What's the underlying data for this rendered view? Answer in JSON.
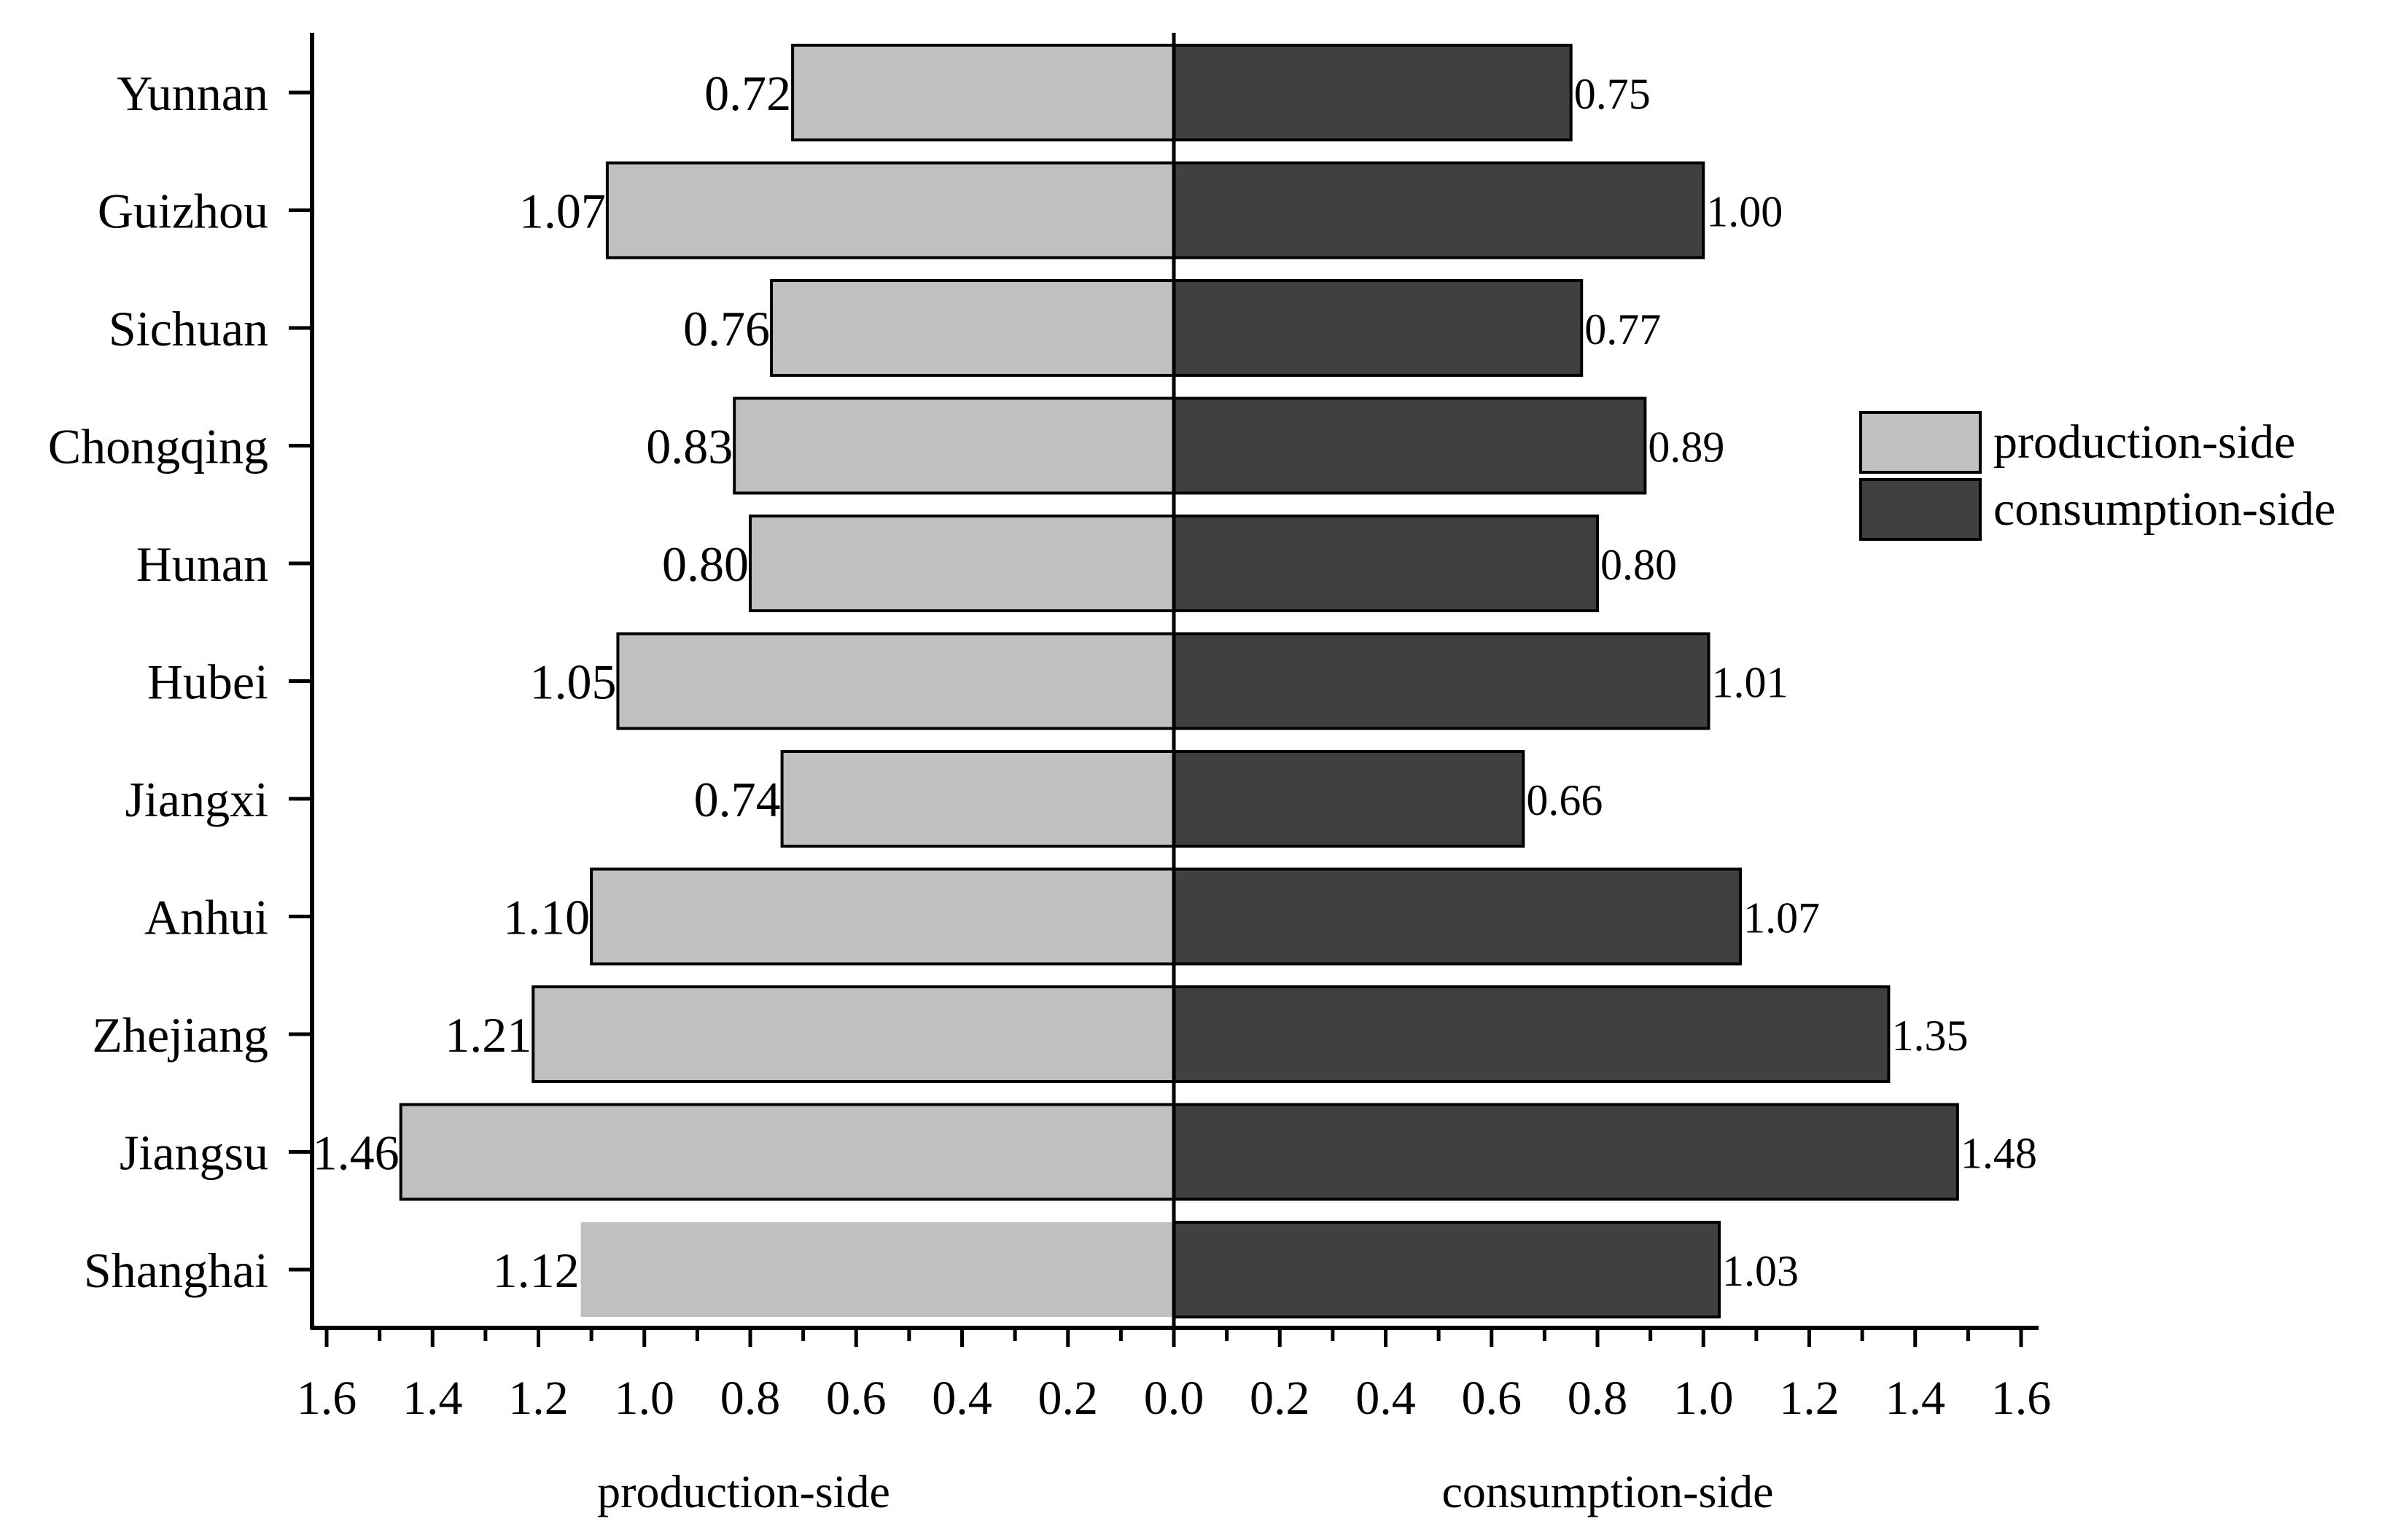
{
  "chart_data": {
    "type": "bar",
    "orientation": "horizontal-diverging",
    "categories": [
      "Yunnan",
      "Guizhou",
      "Sichuan",
      "Chongqing",
      "Hunan",
      "Hubei",
      "Jiangxi",
      "Anhui",
      "Zhejiang",
      "Jiangsu",
      "Shanghai"
    ],
    "series": [
      {
        "name": "production-side",
        "values": [
          0.72,
          1.07,
          0.76,
          0.83,
          0.8,
          1.05,
          0.74,
          1.1,
          1.21,
          1.46,
          1.12
        ],
        "labels": [
          "0.72",
          "1.07",
          "0.76",
          "0.83",
          "0.80",
          "1.05",
          "0.74",
          "1.10",
          "1.21",
          "1.46",
          "1.12"
        ],
        "color": "#c0c0c0",
        "direction": "left"
      },
      {
        "name": "consumption-side",
        "values": [
          0.75,
          1.0,
          0.77,
          0.89,
          0.8,
          1.01,
          0.66,
          1.07,
          1.35,
          1.48,
          1.03
        ],
        "labels": [
          "0.75",
          "1.00",
          "0.77",
          "0.89",
          "0.80",
          "1.01",
          "0.66",
          "1.07",
          "1.35",
          "1.48",
          "1.03"
        ],
        "color": "#404040",
        "direction": "right"
      }
    ],
    "x_ticks_left": [
      "1.6",
      "1.4",
      "1.2",
      "1.0",
      "0.8",
      "0.6",
      "0.4",
      "0.2"
    ],
    "x_ticks_right": [
      "0.0",
      "0.2",
      "0.4",
      "0.6",
      "0.8",
      "1.0",
      "1.2",
      "1.4",
      "1.6"
    ],
    "xlabel_left": "production-side",
    "xlabel_right": "consumption-side",
    "xlim_left": [
      1.7,
      0
    ],
    "xlim_right": [
      0,
      1.7
    ],
    "legend": {
      "position": "right",
      "entries": [
        "production-side",
        "consumption-side"
      ]
    },
    "grid": false
  }
}
